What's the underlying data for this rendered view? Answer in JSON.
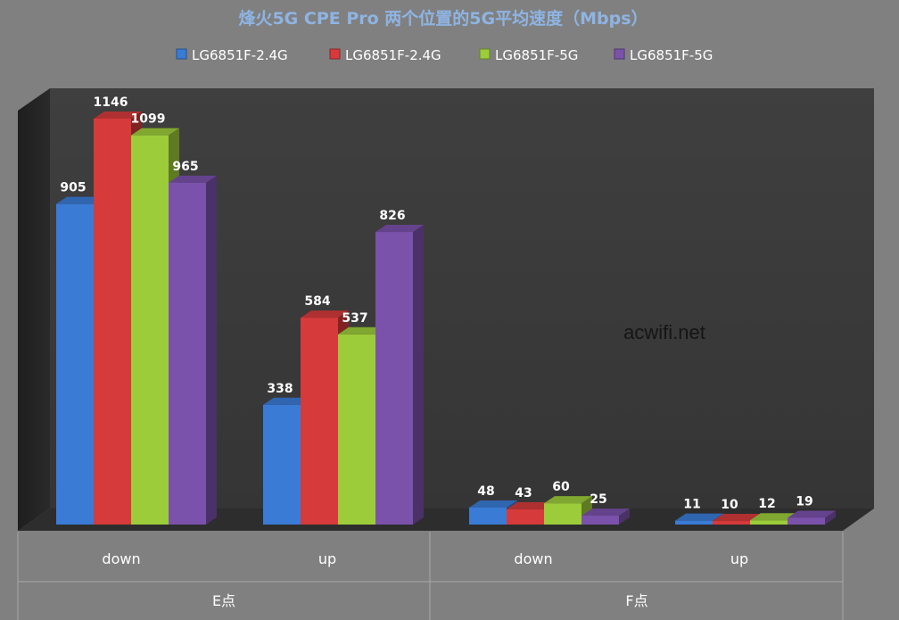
{
  "chart_data": {
    "type": "bar",
    "title": "烽火5G CPE Pro 两个位置的5G平均速度（Mbps）",
    "watermark": "acwifi.net",
    "legend_position": "top",
    "grid": false,
    "three_d": true,
    "ylim": [
      0,
      1300
    ],
    "groups": [
      {
        "label": "E点",
        "categories": [
          "down",
          "up"
        ]
      },
      {
        "label": "F点",
        "categories": [
          "down",
          "up"
        ]
      }
    ],
    "categories": [
      "down",
      "up",
      "down",
      "up"
    ],
    "series": [
      {
        "name": "LG6851F-2.4G",
        "color": "#3a7bd5",
        "values": [
          905,
          338,
          48,
          11
        ]
      },
      {
        "name": "LG6851F-2.4G",
        "color": "#d63a3a",
        "values": [
          1146,
          584,
          43,
          10
        ]
      },
      {
        "name": "LG6851F-5G",
        "color": "#9ccc3a",
        "values": [
          1099,
          537,
          60,
          12
        ]
      },
      {
        "name": "LG6851F-5G",
        "color": "#7b52ab",
        "values": [
          965,
          826,
          25,
          19
        ]
      }
    ]
  }
}
